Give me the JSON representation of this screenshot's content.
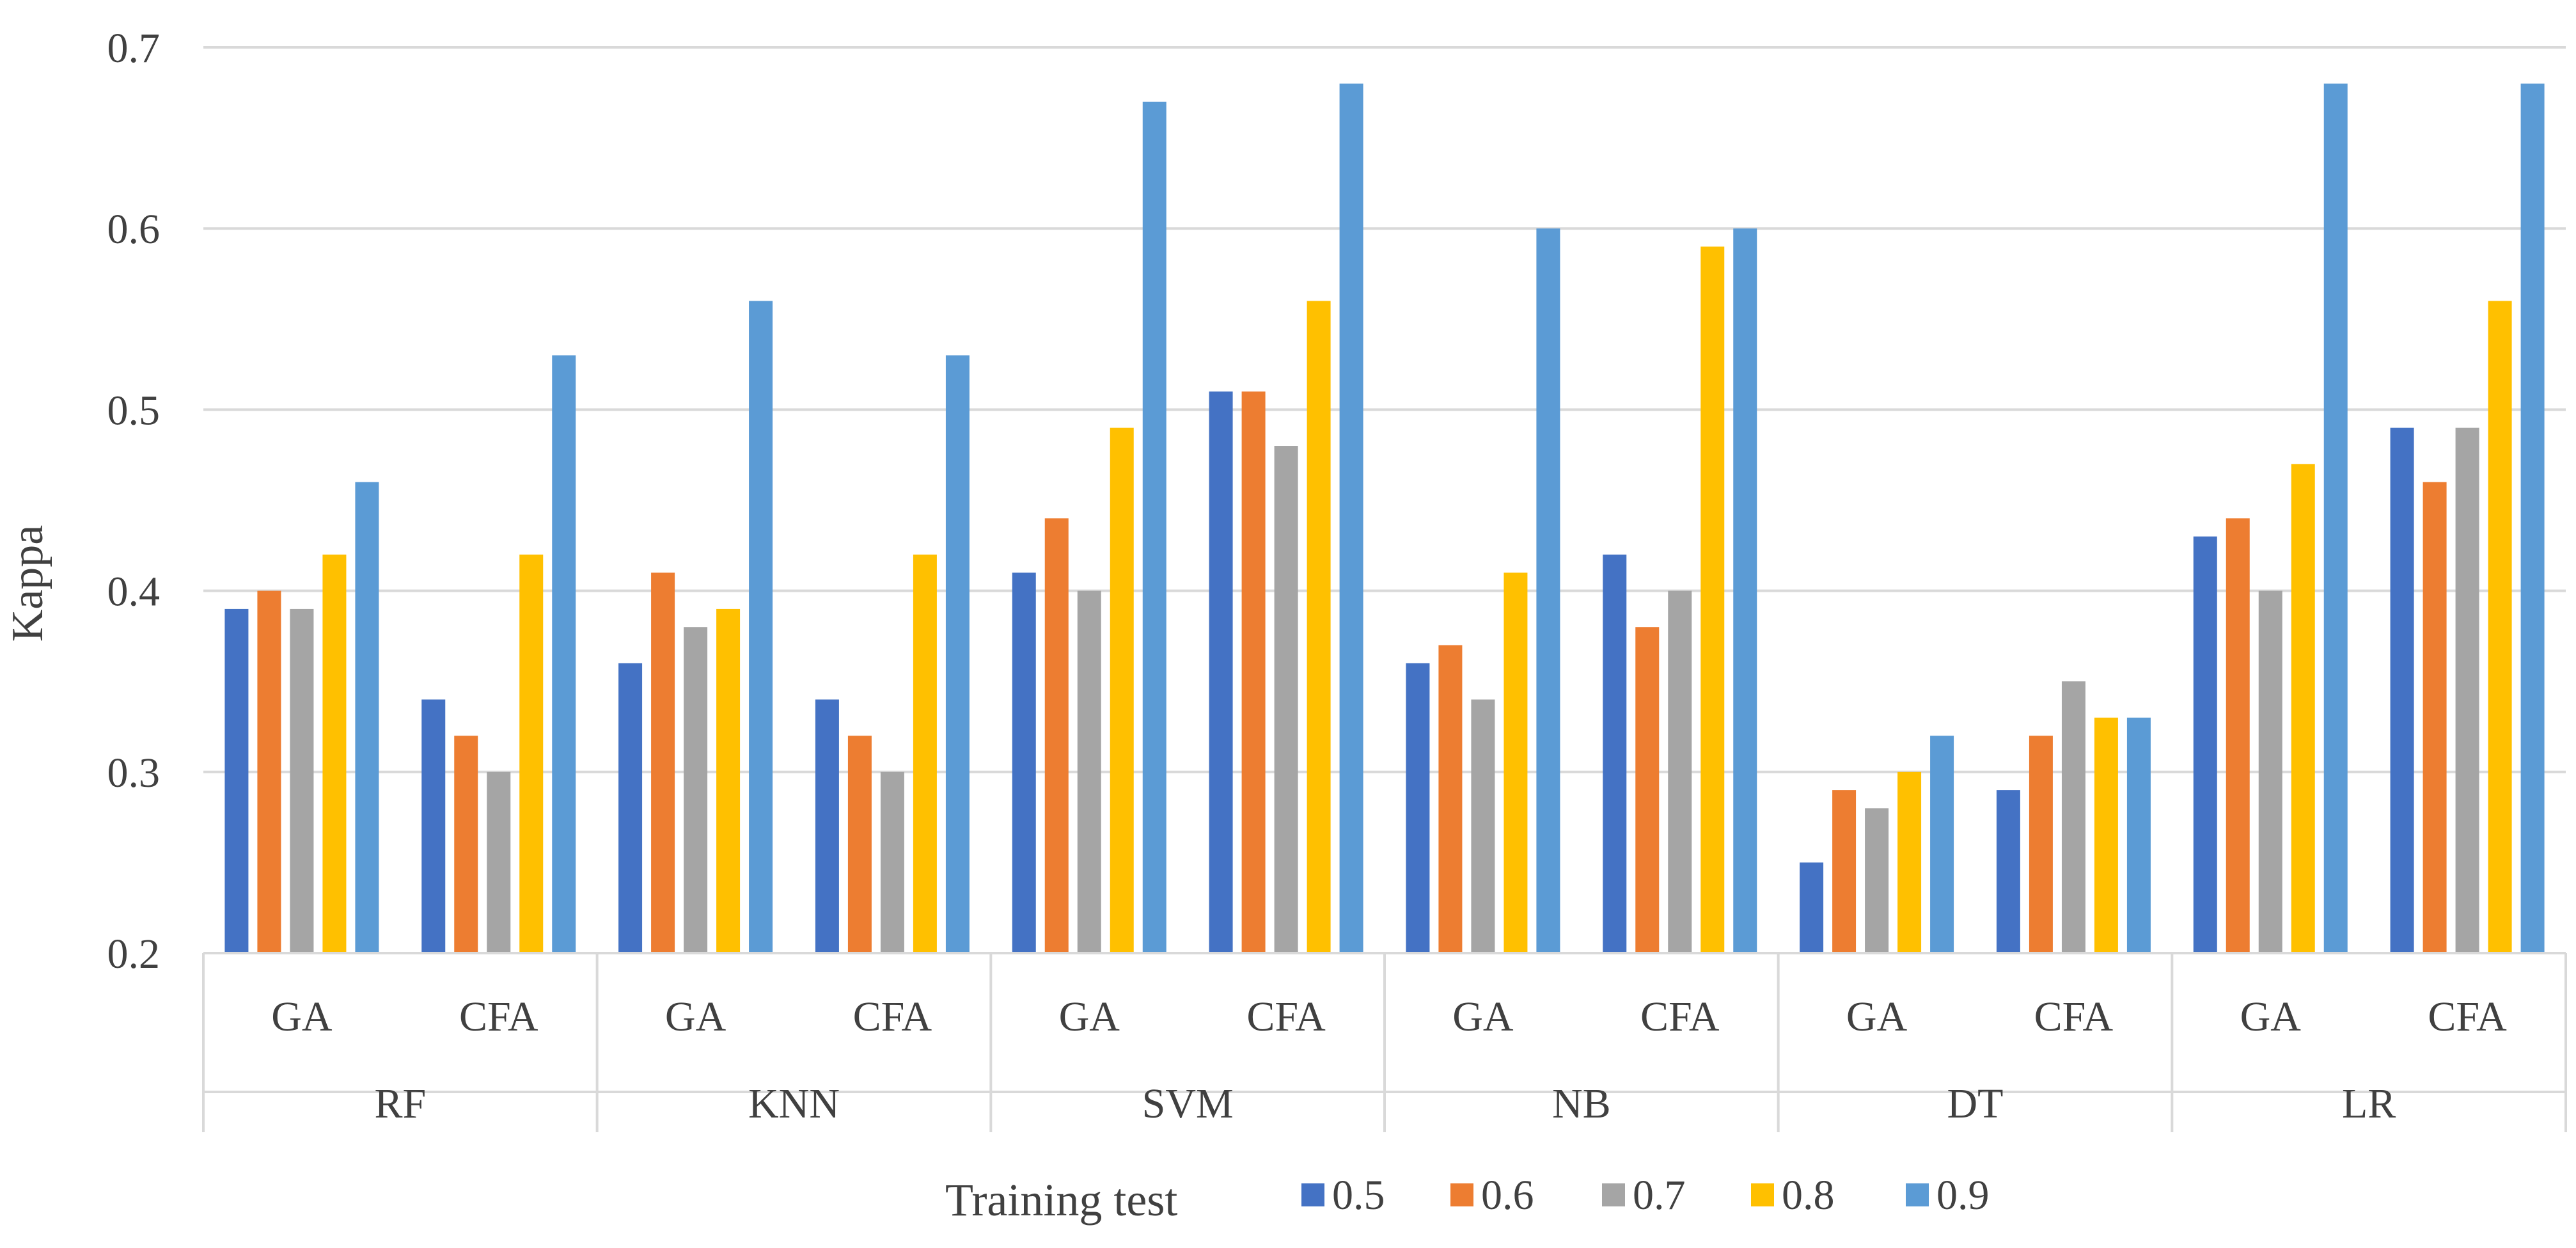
{
  "chart_data": {
    "type": "bar",
    "title": "",
    "xlabel": "",
    "ylabel": "Kappa",
    "ylim": [
      0.2,
      0.7
    ],
    "yticks": [
      "0.2",
      "0.3",
      "0.4",
      "0.5",
      "0.6",
      "0.7"
    ],
    "grid": true,
    "legend_position": "bottom",
    "legend_title": "Training test",
    "groups": [
      {
        "label": "RF",
        "categories": [
          "GA",
          "CFA"
        ]
      },
      {
        "label": "KNN",
        "categories": [
          "GA",
          "CFA"
        ]
      },
      {
        "label": "SVM",
        "categories": [
          "GA",
          "CFA"
        ]
      },
      {
        "label": "NB",
        "categories": [
          "GA",
          "CFA"
        ]
      },
      {
        "label": "DT",
        "categories": [
          "GA",
          "CFA"
        ]
      },
      {
        "label": "LR",
        "categories": [
          "GA",
          "CFA"
        ]
      }
    ],
    "series": [
      {
        "name": "0.5",
        "color": "#4472C4",
        "values": [
          0.39,
          0.34,
          0.36,
          0.34,
          0.41,
          0.51,
          0.36,
          0.42,
          0.25,
          0.29,
          0.43,
          0.49
        ]
      },
      {
        "name": "0.6",
        "color": "#ED7D31",
        "values": [
          0.4,
          0.32,
          0.41,
          0.32,
          0.44,
          0.51,
          0.37,
          0.38,
          0.29,
          0.32,
          0.44,
          0.46
        ]
      },
      {
        "name": "0.7",
        "color": "#A5A5A5",
        "values": [
          0.39,
          0.3,
          0.38,
          0.3,
          0.4,
          0.48,
          0.34,
          0.4,
          0.28,
          0.35,
          0.4,
          0.49
        ]
      },
      {
        "name": "0.8",
        "color": "#FFC000",
        "values": [
          0.42,
          0.42,
          0.39,
          0.42,
          0.49,
          0.56,
          0.41,
          0.59,
          0.3,
          0.33,
          0.47,
          0.56
        ]
      },
      {
        "name": "0.9",
        "color": "#5B9BD5",
        "values": [
          0.46,
          0.53,
          0.56,
          0.53,
          0.67,
          0.68,
          0.6,
          0.6,
          0.32,
          0.33,
          0.68,
          0.68
        ]
      }
    ]
  }
}
